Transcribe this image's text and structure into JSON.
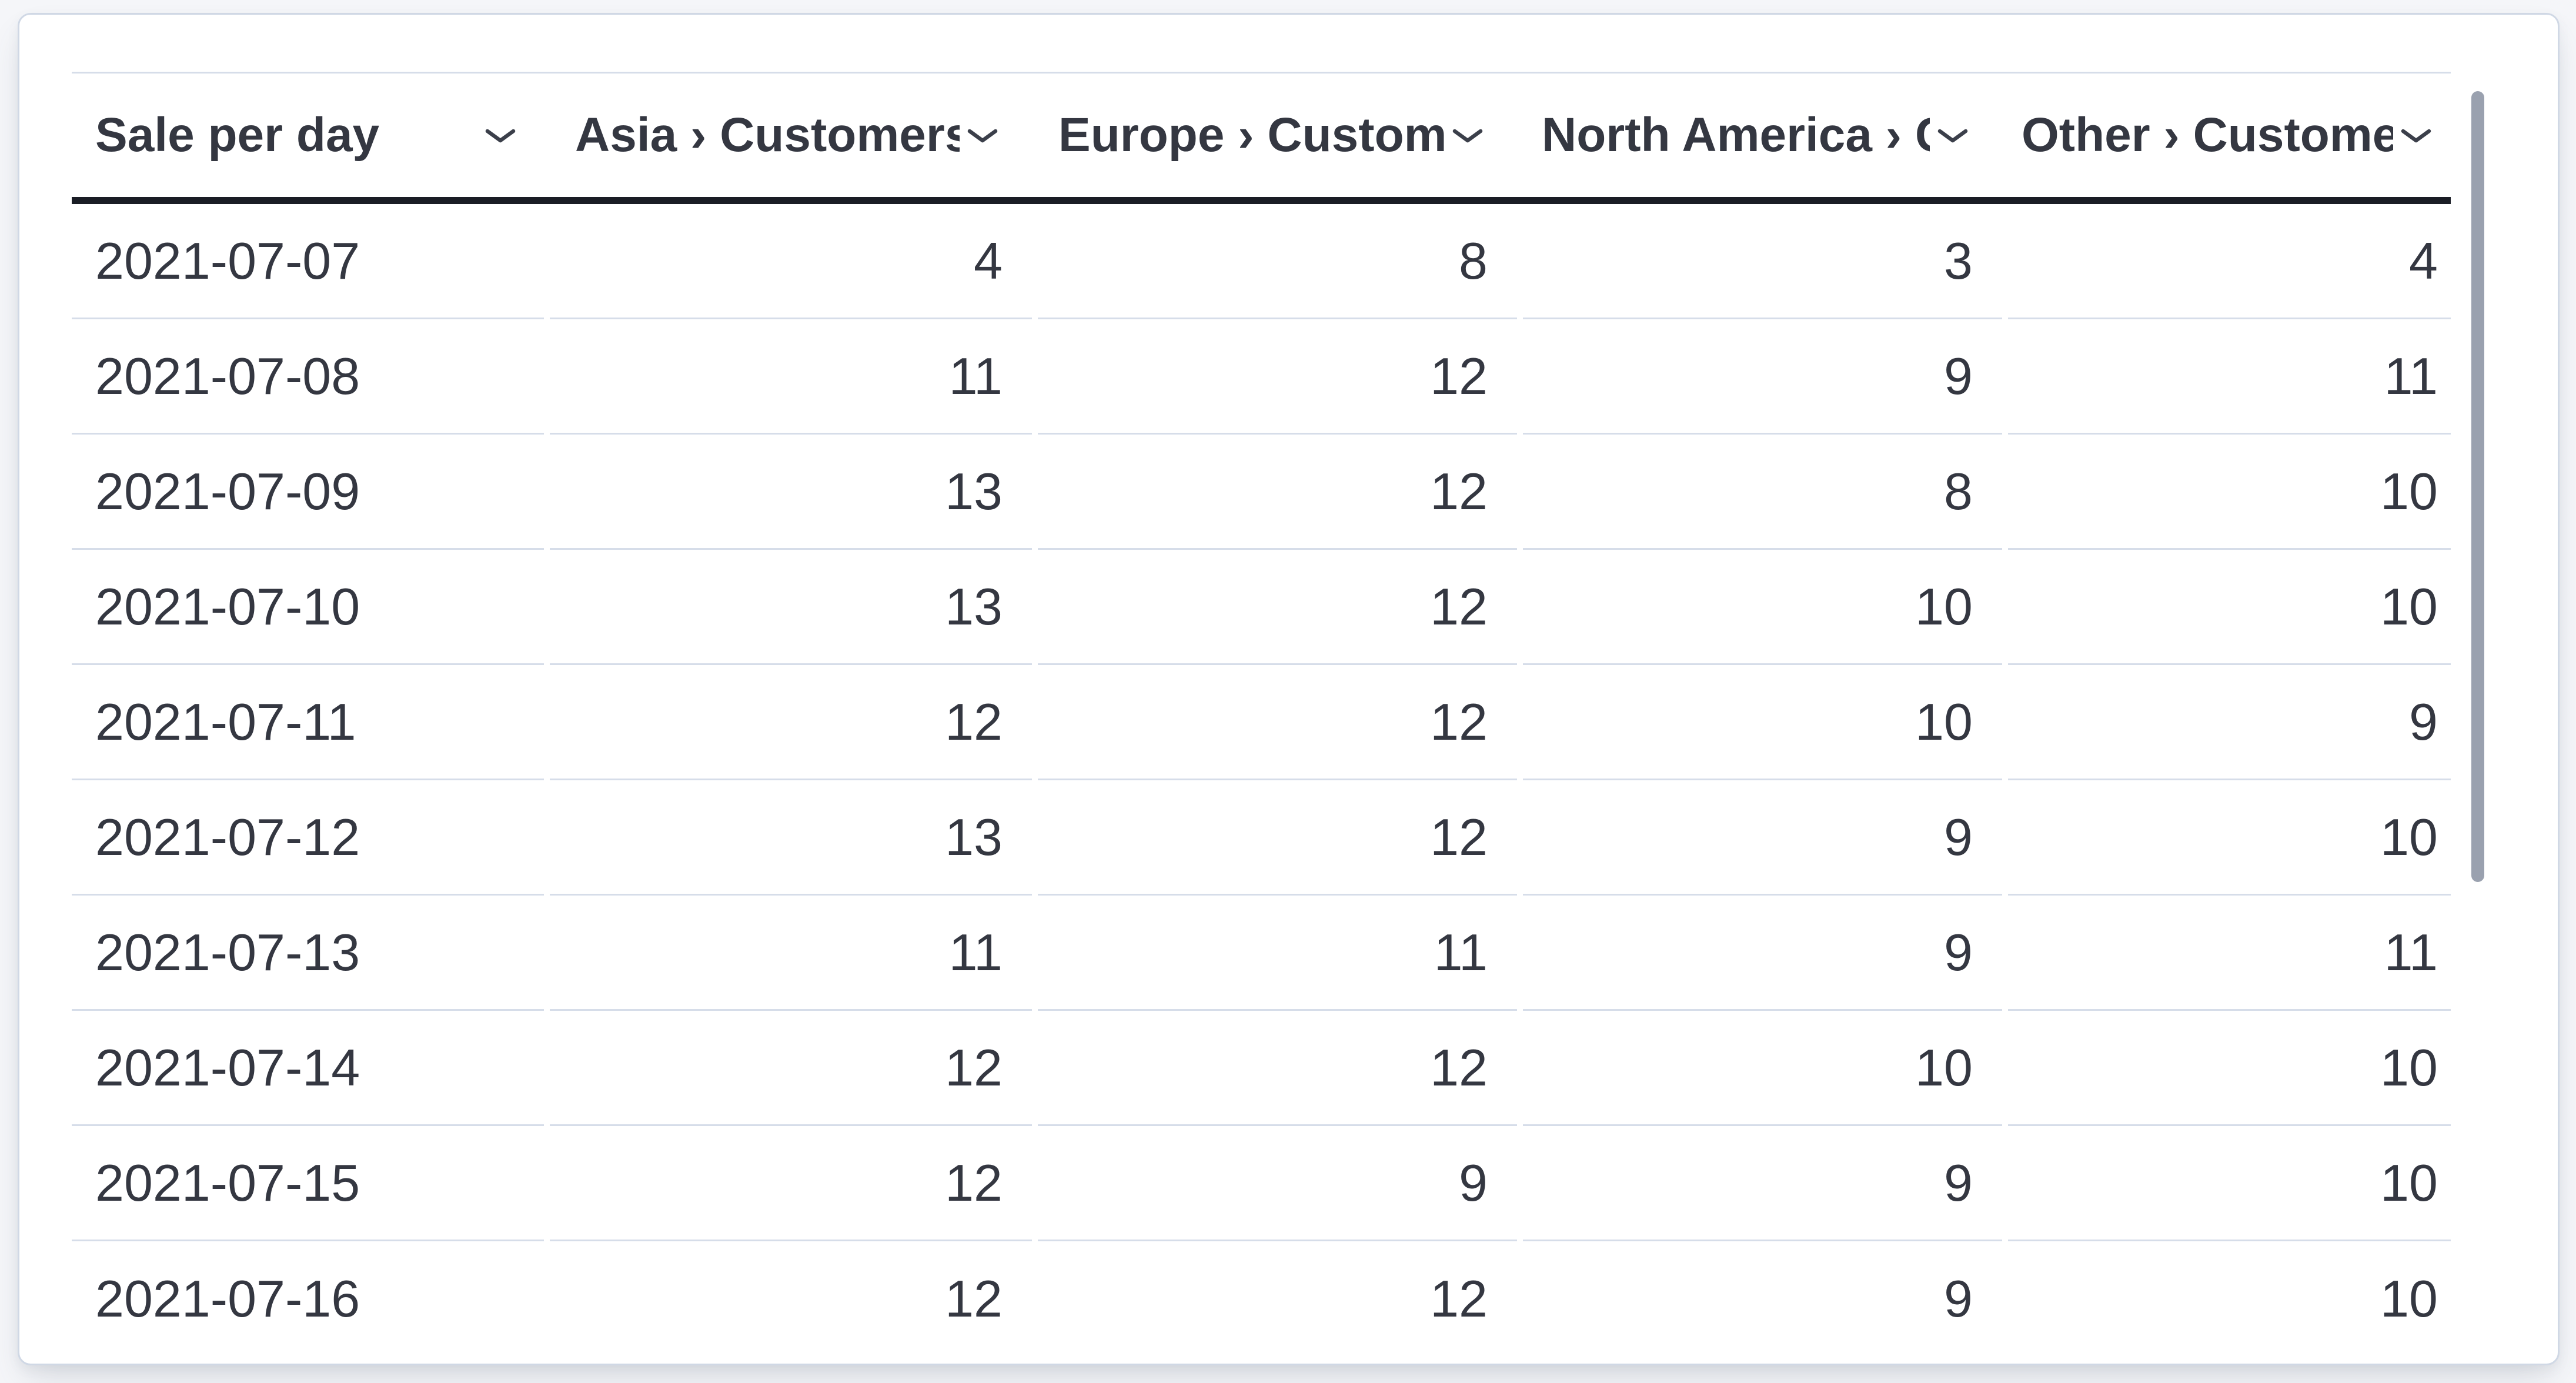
{
  "table": {
    "columns": [
      {
        "label": "Sale per day",
        "align": "left",
        "sort_icon": "chevron-down-icon"
      },
      {
        "label": "Asia › Customers",
        "align": "right",
        "sort_icon": "chevron-down-icon"
      },
      {
        "label": "Europe › Customers",
        "align": "right",
        "sort_icon": "chevron-down-icon"
      },
      {
        "label": "North America › Customers",
        "align": "right",
        "sort_icon": "chevron-down-icon"
      },
      {
        "label": "Other › Customers",
        "align": "right",
        "sort_icon": "chevron-down-icon"
      }
    ],
    "rows": [
      [
        "2021-07-07",
        "4",
        "8",
        "3",
        "4"
      ],
      [
        "2021-07-08",
        "11",
        "12",
        "9",
        "11"
      ],
      [
        "2021-07-09",
        "13",
        "12",
        "8",
        "10"
      ],
      [
        "2021-07-10",
        "13",
        "12",
        "10",
        "10"
      ],
      [
        "2021-07-11",
        "12",
        "12",
        "10",
        "9"
      ],
      [
        "2021-07-12",
        "13",
        "12",
        "9",
        "10"
      ],
      [
        "2021-07-13",
        "11",
        "11",
        "9",
        "11"
      ],
      [
        "2021-07-14",
        "12",
        "12",
        "10",
        "10"
      ],
      [
        "2021-07-15",
        "12",
        "9",
        "9",
        "10"
      ],
      [
        "2021-07-16",
        "12",
        "12",
        "9",
        "10"
      ]
    ]
  },
  "scrollbar": {
    "orientation": "vertical",
    "visible": true
  },
  "colors": {
    "page_background": "#f5f6f9",
    "card_background": "#ffffff",
    "card_border": "#d0d8e5",
    "header_underline": "#1a1d25",
    "row_separator": "#d6dde9",
    "text": "#343741",
    "chevron": "#3b3f4a",
    "scrollbar_thumb": "#9aa1af"
  }
}
